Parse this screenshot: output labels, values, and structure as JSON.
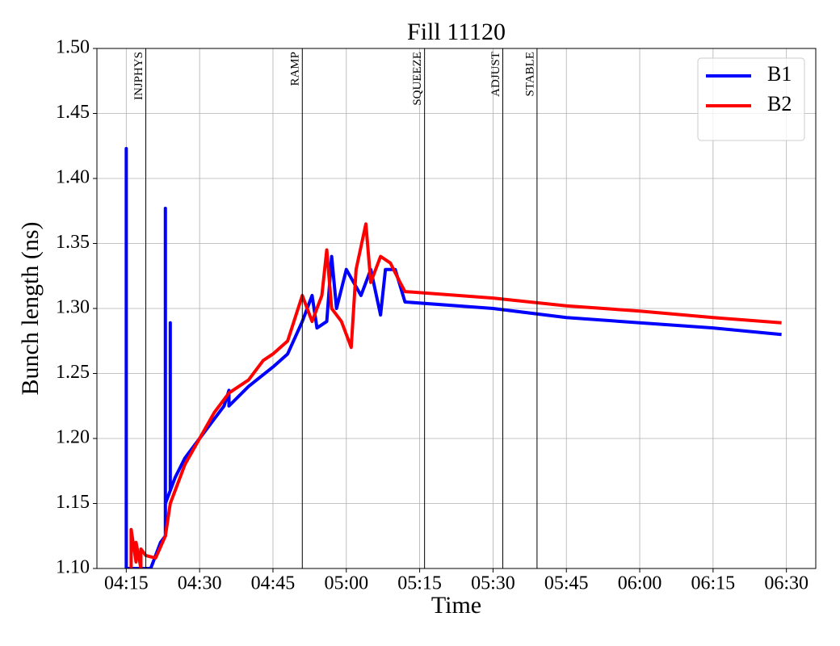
{
  "chart_data": {
    "type": "line",
    "title": "Fill 11120",
    "x_label": "Time",
    "y_label": "Bunch length (ns)",
    "xlim": [
      "04:09",
      "06:36"
    ],
    "ylim": [
      1.1,
      1.5
    ],
    "xticks": [
      "04:15",
      "04:30",
      "04:45",
      "05:00",
      "05:15",
      "05:30",
      "05:45",
      "06:00",
      "06:15",
      "06:30"
    ],
    "yticks": [
      {
        "value": 1.1,
        "label": "1.10"
      },
      1.15,
      {
        "value": 1.2,
        "label": "1.20"
      },
      1.25,
      {
        "value": 1.3,
        "label": "1.30"
      },
      1.35,
      {
        "value": 1.4,
        "label": "1.40"
      },
      1.45,
      {
        "value": 1.5,
        "label": "1.50"
      }
    ],
    "grid": true,
    "legend": "upper right",
    "phases": [
      {
        "label": "INJPHYS",
        "x": "04:19"
      },
      {
        "label": "RAMP",
        "x": "04:51"
      },
      {
        "label": "SQUEEZE",
        "x": "05:16"
      },
      {
        "label": "ADJUST",
        "x": "05:32"
      },
      {
        "label": "STABLE",
        "x": "05:39"
      }
    ],
    "series": [
      {
        "name": "B1",
        "color": "#0000ff",
        "x": [
          "04:15",
          "04:15",
          "04:15",
          "04:20",
          "04:21",
          "04:22",
          "04:23",
          "04:23",
          "04:23",
          "04:24",
          "04:24",
          "04:24",
          "04:25",
          "04:27",
          "04:30",
          "04:33",
          "04:35",
          "04:36",
          "04:36",
          "04:40",
          "04:45",
          "04:48",
          "04:51",
          "04:53",
          "04:54",
          "04:56",
          "04:57",
          "04:58",
          "05:00",
          "05:03",
          "05:05",
          "05:07",
          "05:08",
          "05:10",
          "05:12",
          "05:30",
          "05:45",
          "06:00",
          "06:15",
          "06:29"
        ],
        "values": [
          1.1,
          1.423,
          1.1,
          1.1,
          1.11,
          1.12,
          1.125,
          1.377,
          1.15,
          1.16,
          1.289,
          1.16,
          1.17,
          1.185,
          1.2,
          1.215,
          1.225,
          1.237,
          1.225,
          1.24,
          1.255,
          1.265,
          1.29,
          1.31,
          1.285,
          1.29,
          1.34,
          1.3,
          1.33,
          1.31,
          1.33,
          1.295,
          1.33,
          1.33,
          1.305,
          1.3,
          1.293,
          1.289,
          1.285,
          1.28
        ]
      },
      {
        "name": "B2",
        "color": "#ff0000",
        "x": [
          "04:16",
          "04:16",
          "04:17",
          "04:17",
          "04:18",
          "04:18",
          "04:19",
          "04:21",
          "04:23",
          "04:24",
          "04:27",
          "04:30",
          "04:33",
          "04:36",
          "04:40",
          "04:43",
          "04:45",
          "04:48",
          "04:51",
          "04:53",
          "04:55",
          "04:56",
          "04:57",
          "04:59",
          "05:01",
          "05:02",
          "05:04",
          "05:05",
          "05:07",
          "05:09",
          "05:11",
          "05:12",
          "05:30",
          "05:45",
          "06:00",
          "06:15",
          "06:29"
        ],
        "values": [
          1.1,
          1.13,
          1.105,
          1.12,
          1.1,
          1.115,
          1.11,
          1.108,
          1.125,
          1.15,
          1.18,
          1.2,
          1.22,
          1.235,
          1.245,
          1.26,
          1.265,
          1.275,
          1.31,
          1.29,
          1.31,
          1.345,
          1.3,
          1.29,
          1.27,
          1.33,
          1.365,
          1.32,
          1.34,
          1.335,
          1.32,
          1.313,
          1.308,
          1.302,
          1.298,
          1.293,
          1.289
        ]
      }
    ]
  }
}
